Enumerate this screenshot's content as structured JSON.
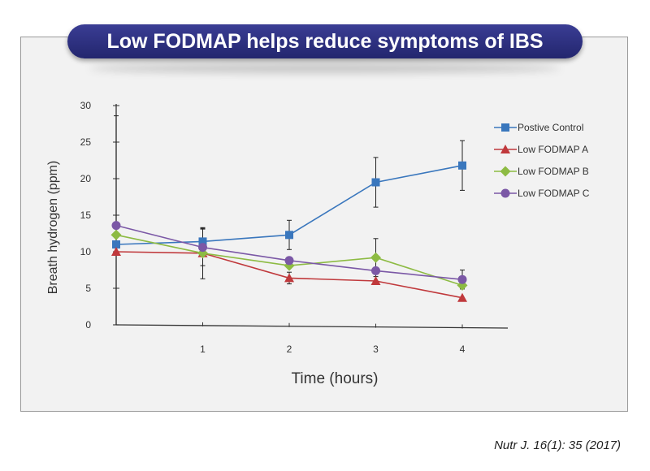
{
  "title": "Low FODMAP helps reduce symptoms of IBS",
  "citation": "Nutr J. 16(1): 35 (2017)",
  "chart_data": {
    "type": "line",
    "xlabel": "Time (hours)",
    "ylabel": "Breath hydrogen (ppm)",
    "x": [
      0,
      1,
      2,
      3,
      4
    ],
    "xticks": [
      1,
      2,
      3,
      4
    ],
    "yticks": [
      0,
      5,
      10,
      15,
      20,
      25,
      30
    ],
    "xlim": [
      0,
      4.6
    ],
    "ylim": [
      0,
      30
    ],
    "grid": false,
    "legend_position": "right",
    "series": [
      {
        "name": "Postive Control",
        "color": "#3a77bd",
        "marker": "square",
        "values": [
          11.0,
          11.4,
          12.3,
          19.5,
          21.8
        ],
        "error_bars": [
          null,
          1.8,
          2.0,
          3.4,
          3.4
        ]
      },
      {
        "name": "Low FODMAP A",
        "color": "#c0393c",
        "marker": "triangle",
        "values": [
          10.0,
          9.8,
          6.4,
          6.0,
          3.7
        ],
        "error_bars": [
          null,
          null,
          0.8,
          null,
          null
        ]
      },
      {
        "name": "Low FODMAP B",
        "color": "#8dbb43",
        "marker": "diamond",
        "values": [
          12.3,
          9.8,
          8.1,
          9.2,
          5.4
        ],
        "error_bars": [
          null,
          3.5,
          null,
          2.6,
          null
        ]
      },
      {
        "name": "Low FODMAP C",
        "color": "#7b58a6",
        "marker": "circle",
        "values": [
          13.6,
          10.6,
          8.8,
          7.4,
          6.2
        ],
        "error_bars": [
          15.0,
          2.5,
          null,
          null,
          1.3
        ]
      }
    ]
  }
}
